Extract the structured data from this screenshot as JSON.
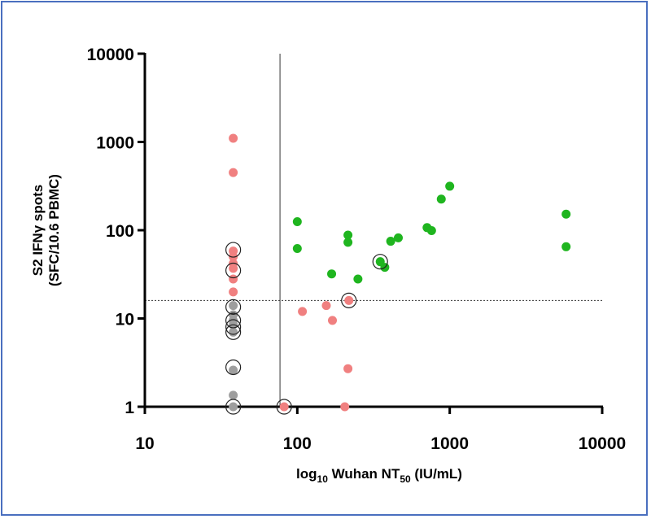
{
  "chart_data": {
    "type": "scatter",
    "x_scale": "log",
    "y_scale": "log",
    "xlim": [
      10,
      10000
    ],
    "ylim": [
      1,
      10000
    ],
    "x_ticks": [
      "10",
      "100",
      "1000",
      "10000"
    ],
    "y_ticks": [
      "1",
      "10",
      "100",
      "1000",
      "10000"
    ],
    "xlabel": {
      "prefix": "log",
      "prefix_sub": "10",
      "main": " Wuhan NT",
      "main_sub": "50",
      "suffix": " (IU/mL)"
    },
    "ylabel": {
      "line1": "S2 IFNγ spots",
      "line2": "(SFC/10.6 PBMC)"
    },
    "vertical_threshold_x": 77,
    "horizontal_threshold_y": 16,
    "series": [
      {
        "color": "#f08080",
        "points": [
          [
            38,
            1100
          ],
          [
            38,
            450
          ],
          [
            38,
            58
          ],
          [
            38,
            50
          ],
          [
            38,
            42
          ],
          [
            38,
            37
          ],
          [
            38,
            28
          ],
          [
            38,
            20
          ],
          [
            82,
            1
          ],
          [
            108,
            12
          ],
          [
            155,
            14
          ],
          [
            170,
            9.5
          ],
          [
            205,
            1
          ],
          [
            215,
            2.7
          ],
          [
            218,
            16
          ]
        ]
      },
      {
        "color": "#9e9e9e",
        "points": [
          [
            38,
            14
          ],
          [
            38,
            11
          ],
          [
            38,
            9.5
          ],
          [
            38,
            8.5
          ],
          [
            38,
            7
          ],
          [
            38,
            2.6
          ],
          [
            38,
            1.35
          ],
          [
            38,
            1
          ]
        ]
      },
      {
        "color": "#1fb51f",
        "points": [
          [
            100,
            125
          ],
          [
            100,
            62
          ],
          [
            168,
            32
          ],
          [
            215,
            88
          ],
          [
            215,
            73
          ],
          [
            250,
            28
          ],
          [
            350,
            44
          ],
          [
            375,
            38
          ],
          [
            410,
            75
          ],
          [
            460,
            82
          ],
          [
            710,
            107
          ],
          [
            760,
            99
          ],
          [
            880,
            225
          ],
          [
            1000,
            315
          ],
          [
            5800,
            152
          ],
          [
            5800,
            65
          ]
        ]
      }
    ],
    "circled_points": [
      [
        38,
        60
      ],
      [
        38,
        35
      ],
      [
        38,
        13.5
      ],
      [
        38,
        9.5
      ],
      [
        38,
        8
      ],
      [
        38,
        7
      ],
      [
        38,
        2.8
      ],
      [
        38,
        1
      ],
      [
        82,
        1
      ],
      [
        218,
        16
      ],
      [
        350,
        44
      ]
    ]
  }
}
